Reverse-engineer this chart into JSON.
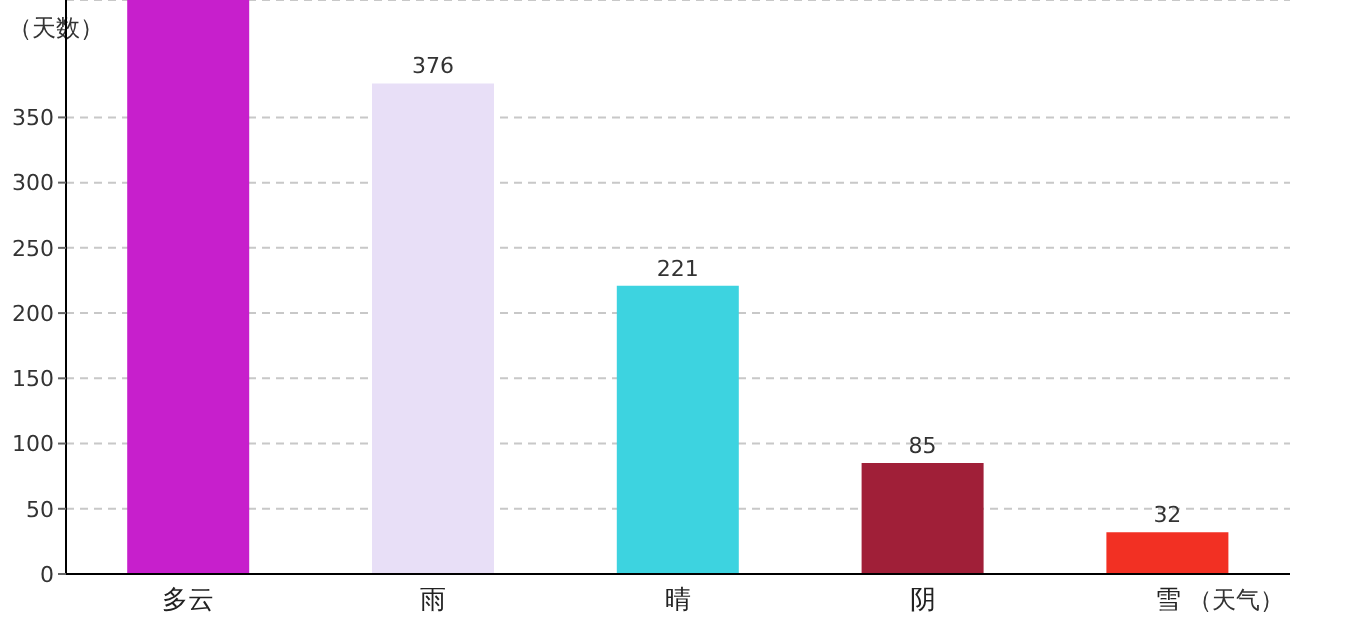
{
  "chart_data": {
    "type": "bar",
    "ylabel": "（天数）",
    "xlabel": "（天气）",
    "categories": [
      "多云",
      "雨",
      "晴",
      "阴",
      "雪"
    ],
    "values": [
      440,
      376,
      221,
      85,
      32
    ],
    "colors": [
      "#c71fcc",
      "#e8dff7",
      "#3dd3e0",
      "#a01f38",
      "#f23023"
    ],
    "value_labels": [
      null,
      "376",
      "221",
      "85",
      "32"
    ],
    "ylim": [
      0,
      440
    ],
    "yticks": [
      0,
      50,
      100,
      150,
      200,
      250,
      300,
      350
    ],
    "grid": "y",
    "legend": false
  }
}
